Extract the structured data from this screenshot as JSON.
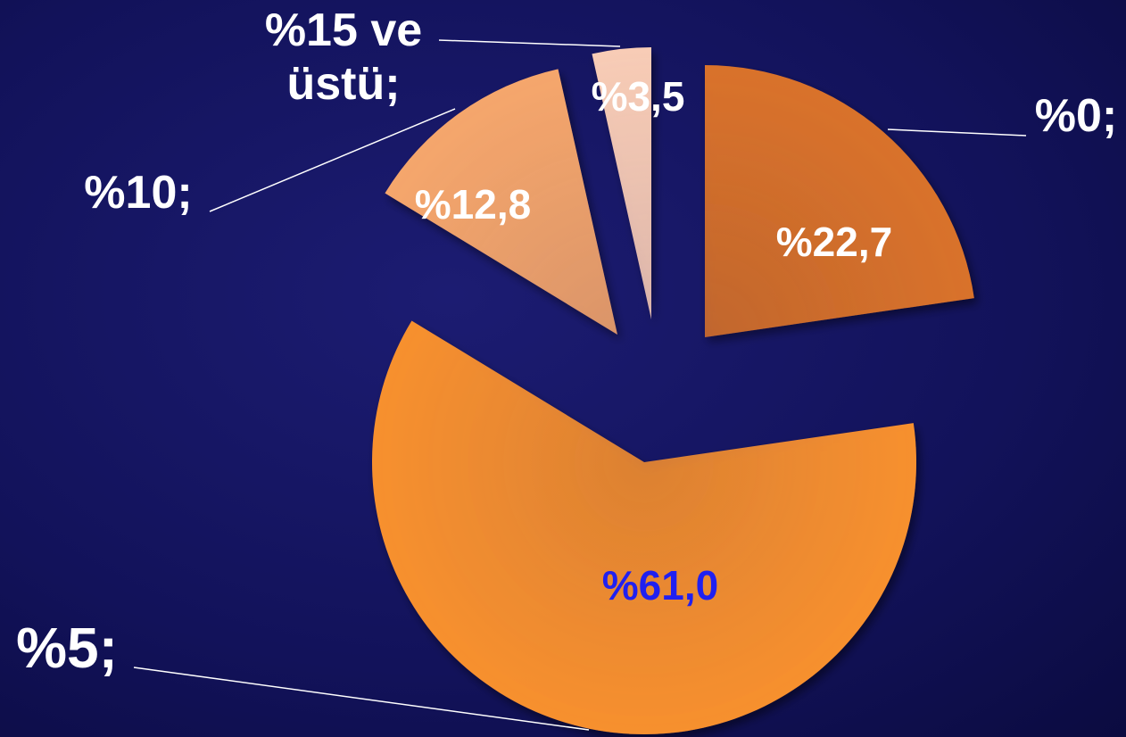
{
  "chart_data": {
    "type": "pie",
    "categories": [
      "%0;",
      "%5;",
      "%10;",
      "%15 ve üstü;"
    ],
    "values": [
      22.7,
      61.0,
      12.8,
      3.5
    ],
    "value_labels": [
      "%22,7",
      "%61,0",
      "%12,8",
      "%3,5"
    ],
    "colors": [
      "#d9722a",
      "#f7902f",
      "#f5a66c",
      "#f8ccb6"
    ],
    "value_label_colors": [
      "#ffffff",
      "#2020f0",
      "#ffffff",
      "#ffffff"
    ]
  }
}
